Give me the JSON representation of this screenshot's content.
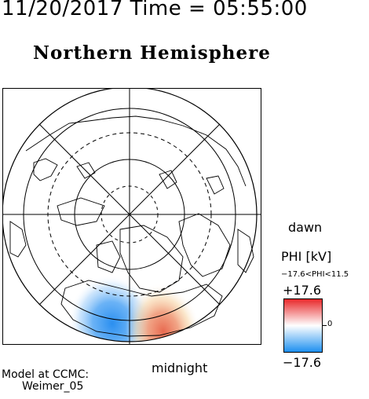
{
  "header": {
    "datetime": "11/20/2017 Time = 05:55:00",
    "title": "Northern Hemisphere"
  },
  "map": {
    "labels": {
      "dawn": "dawn",
      "midnight": "midnight"
    },
    "potential_cells": [
      {
        "type": "negative",
        "shown_as": "blue",
        "magnitude_fraction": 1.0
      },
      {
        "type": "positive",
        "shown_as": "red",
        "magnitude_fraction": 0.65
      }
    ]
  },
  "colorbar": {
    "title": "PHI [kV]",
    "range_text": "−17.6<PHI<11.5",
    "max_label": "+17.6",
    "min_label": "−17.6",
    "zero_label": "0",
    "max_value": 17.6,
    "min_value": -17.6,
    "colors": {
      "max": "#e8282a",
      "mid": "#ffffff",
      "min": "#1e90f0"
    }
  },
  "credit": {
    "line1": "Model at CCMC:",
    "line2": "Weimer_05"
  }
}
